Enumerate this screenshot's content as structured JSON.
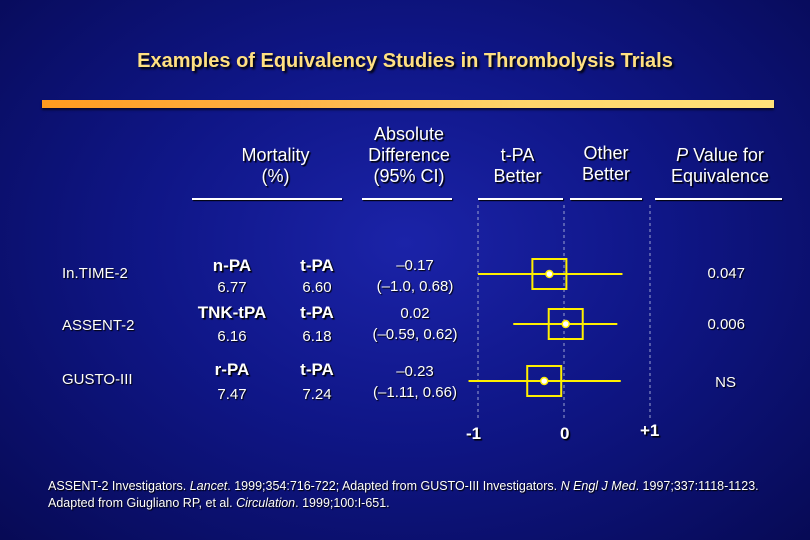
{
  "title": "Examples of Equivalency Studies in Thrombolysis Trials",
  "headers": {
    "mortality": [
      "Mortality",
      "(%)"
    ],
    "abs_diff": [
      "Absolute",
      "Difference",
      "(95% CI)"
    ],
    "tpa_better": [
      "t-PA",
      "Better"
    ],
    "other_better": [
      "Other",
      "Better"
    ],
    "pvalue_italic": "P",
    "pvalue_rest": " Value for",
    "pvalue_line2": "Equivalence"
  },
  "rows": [
    {
      "trial": "In.TIME-2",
      "drug1": "n-PA",
      "val1": "6.77",
      "drug2": "t-PA",
      "val2": "6.60",
      "diff": "–0.17",
      "ci": "(–1.0, 0.68)",
      "p": "0.047",
      "est": -0.17,
      "lo": -1.0,
      "hi": 0.68
    },
    {
      "trial": "ASSENT-2",
      "drug1": "TNK-tPA",
      "val1": "6.16",
      "drug2": "t-PA",
      "val2": "6.18",
      "diff": "0.02",
      "ci": "(–0.59, 0.62)",
      "p": "0.006",
      "est": 0.02,
      "lo": -0.59,
      "hi": 0.62
    },
    {
      "trial": "GUSTO-III",
      "drug1": "r-PA",
      "val1": "7.47",
      "drug2": "t-PA",
      "val2": "7.24",
      "diff": "–0.23",
      "ci": "(–1.11, 0.66)",
      "p": "NS",
      "est": -0.23,
      "lo": -1.11,
      "hi": 0.66
    }
  ],
  "axis": {
    "min_label": "-1",
    "zero_label": "0",
    "max_label": "+1"
  },
  "refs": {
    "p1": "ASSENT-2 Investigators. ",
    "j1": "Lancet",
    "p2": ". 1999;354:716-722;  Adapted from GUSTO-III Investigators. ",
    "j2": "N Engl J Med",
    "p3": ". 1997;337:1118-1123.  Adapted from Giugliano RP, et al. ",
    "j3": "Circulation",
    "p4": ". 1999;100:I-651."
  },
  "colors": {
    "title": "#ffe082",
    "forest": "#ffef00",
    "background": "#0f1687"
  }
}
